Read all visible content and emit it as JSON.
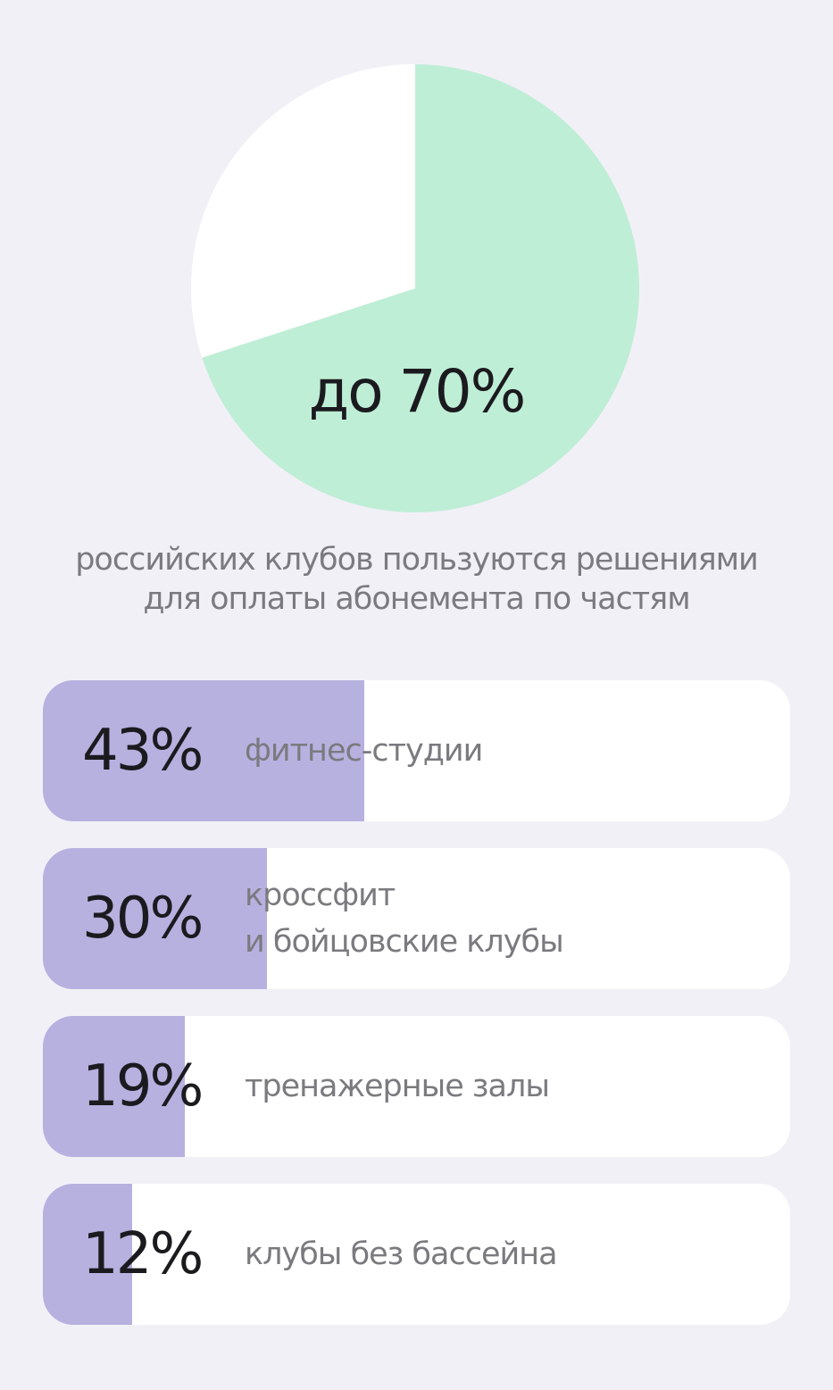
{
  "chart_data": [
    {
      "type": "pie",
      "slices": [
        {
          "label": "до 70%",
          "value": 70,
          "color": "#bfeed6"
        },
        {
          "label": "",
          "value": 30,
          "color": "#ffffff"
        }
      ],
      "center_label": "до 70%",
      "caption": "российских клубов пользуются решениями\nдля оплаты абонемента по частям"
    },
    {
      "type": "bar",
      "orientation": "horizontal",
      "fill_color": "#b7b1e0",
      "track_color": "#ffffff",
      "categories": [
        "фитнес-студии",
        "кроссфит\nи бойцовские клубы",
        "тренажерные залы",
        "клубы без бассейна"
      ],
      "values": [
        43,
        30,
        19,
        12
      ],
      "value_labels": [
        "43%",
        "30%",
        "19%",
        "12%"
      ],
      "xlim": [
        0,
        100
      ]
    }
  ]
}
